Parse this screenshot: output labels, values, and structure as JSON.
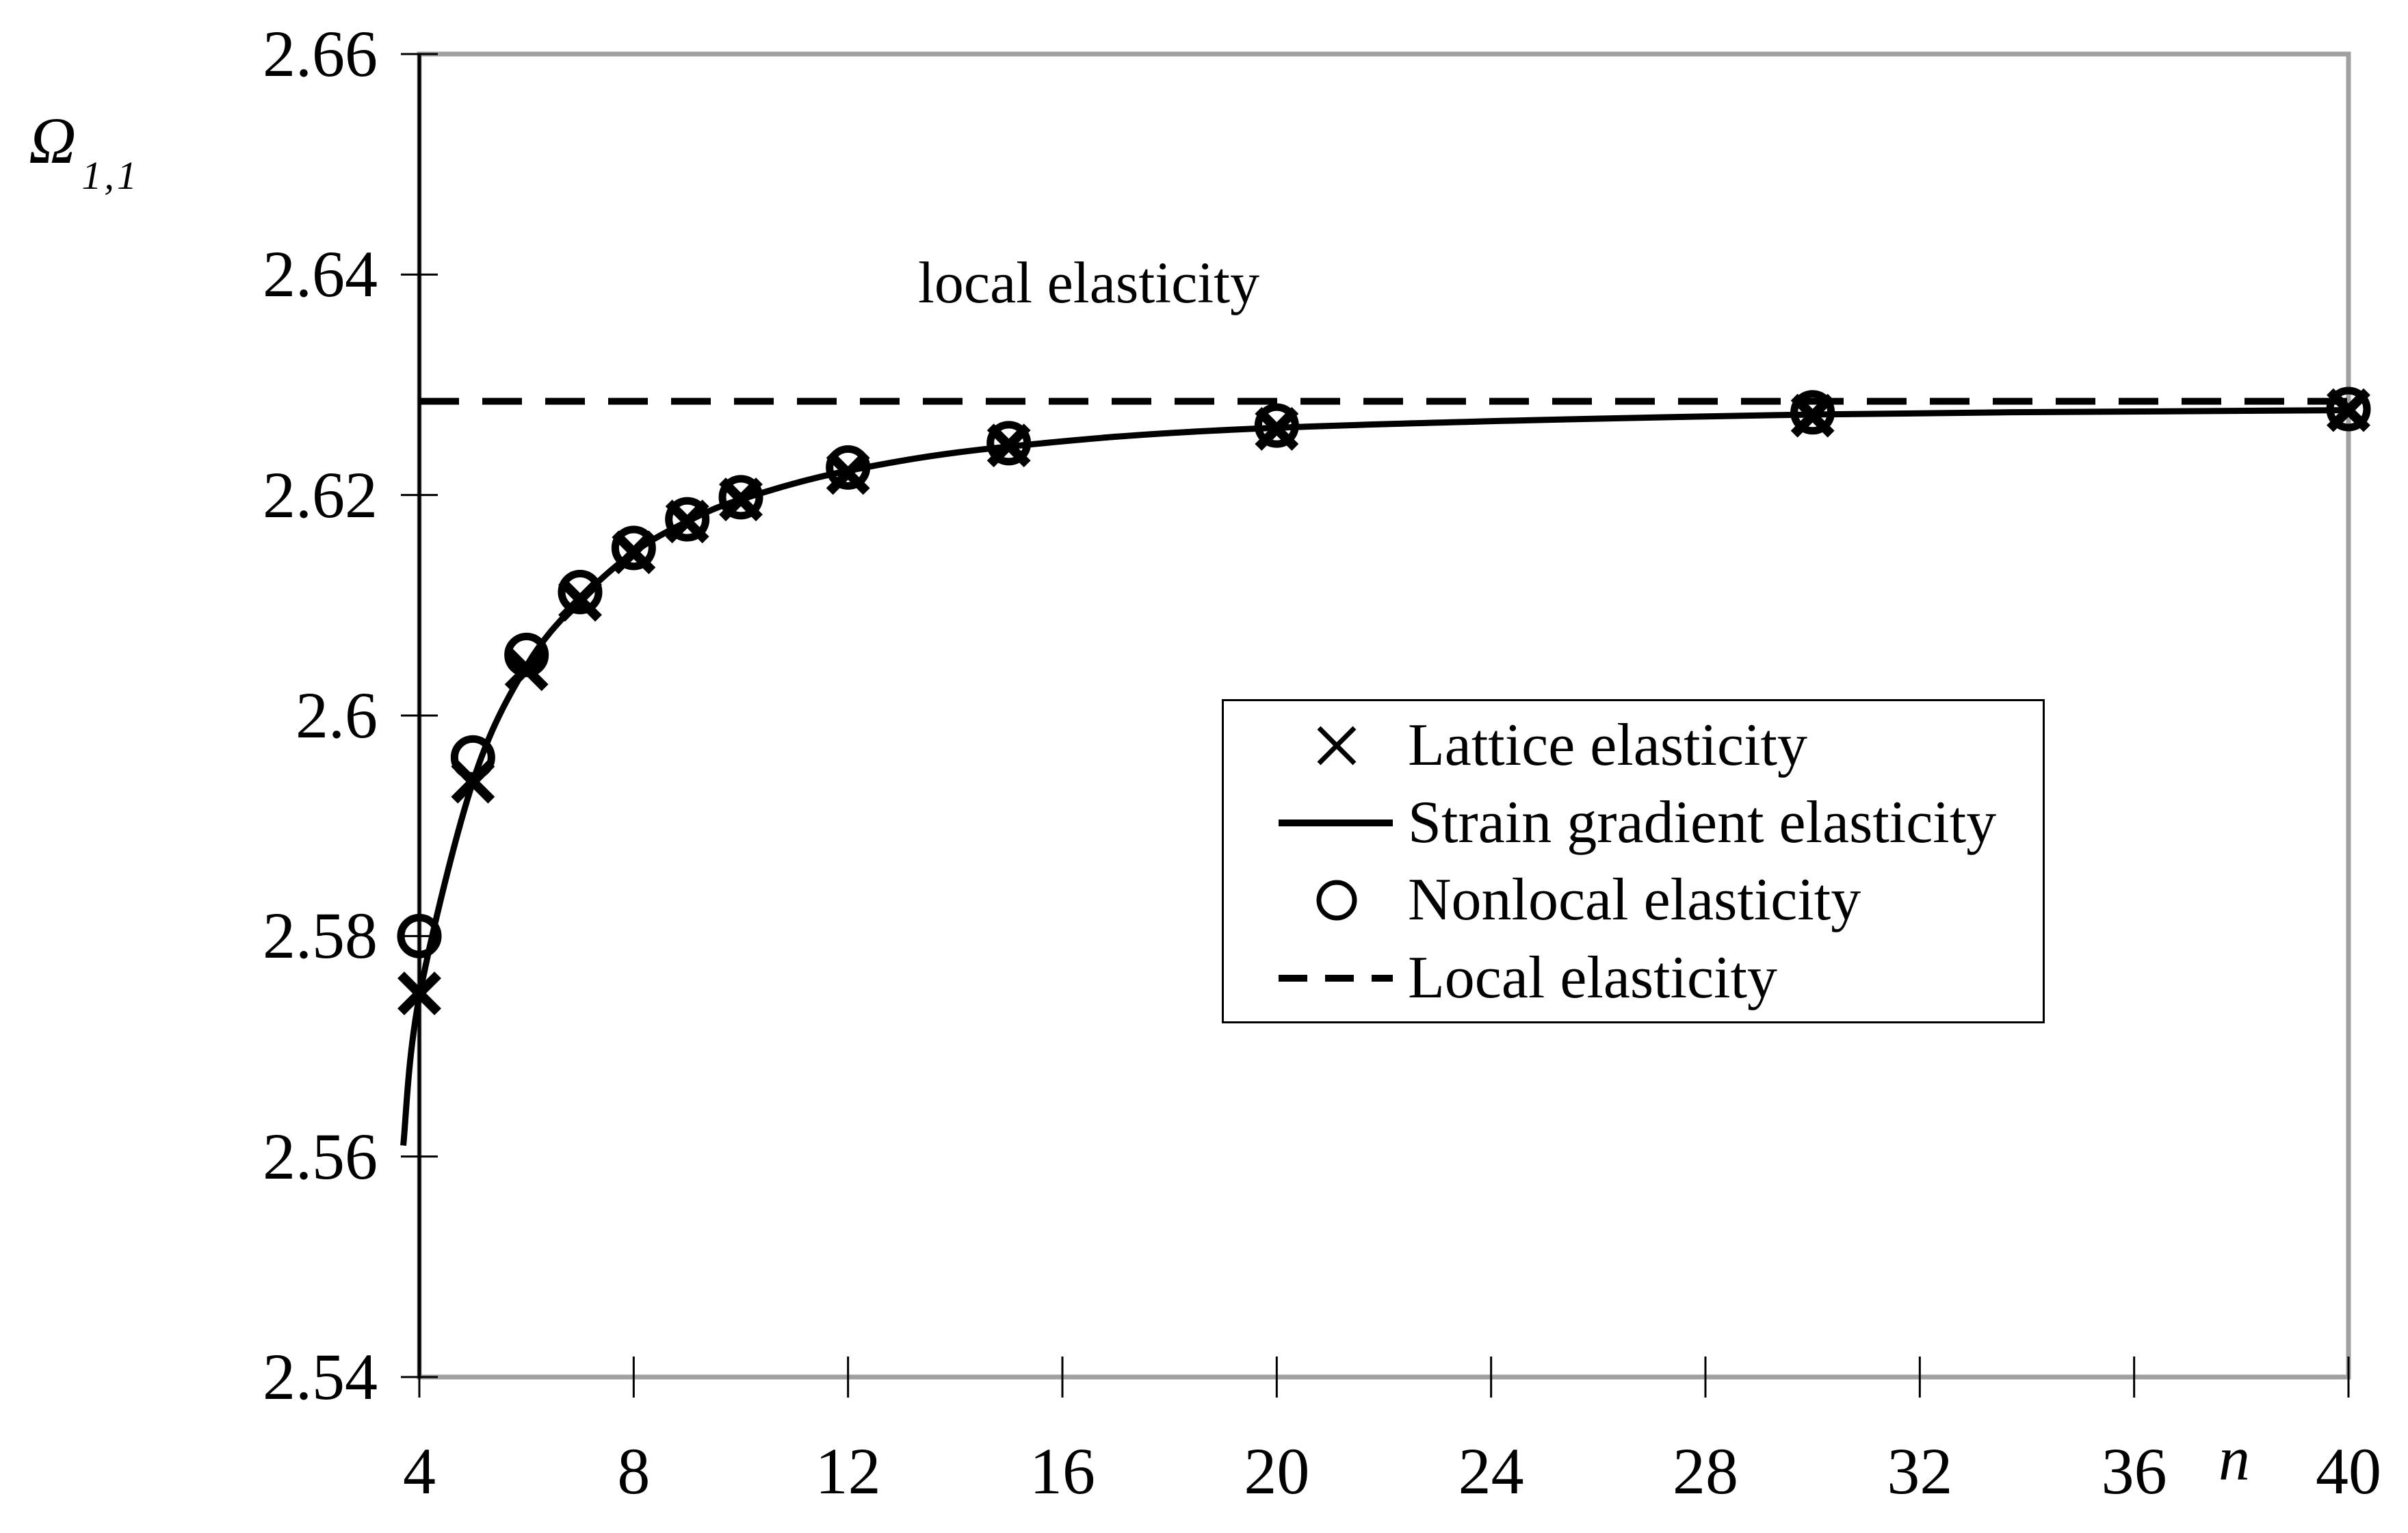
{
  "figure": {
    "annotation": "local elasticity",
    "colors": {
      "curve": "#000000",
      "plot_border": "#a0a0a0",
      "text": "#000000",
      "background": "#ffffff"
    }
  },
  "legend": {
    "items": [
      {
        "marker": "x-cross",
        "label": "Lattice elasticity"
      },
      {
        "marker": "solid-line",
        "label": "Strain gradient elasticity"
      },
      {
        "marker": "circle",
        "label": "Nonlocal elasticity"
      },
      {
        "marker": "dashed-line",
        "label": "Local elasticity"
      }
    ]
  },
  "chart_data": {
    "type": "line",
    "axes": {
      "x": {
        "label": "n",
        "range": [
          4,
          40
        ],
        "ticks": [
          4,
          8,
          12,
          16,
          20,
          24,
          28,
          32,
          36,
          40
        ],
        "tick_labels": [
          "4",
          "8",
          "12",
          "16",
          "20",
          "24",
          "28",
          "32",
          "36",
          "40"
        ]
      },
      "y": {
        "label": "Ω",
        "label_subscript": "1,1",
        "range": [
          2.54,
          2.66
        ],
        "ticks": [
          2.54,
          2.56,
          2.58,
          2.6,
          2.62,
          2.64,
          2.66
        ],
        "tick_labels": [
          "2.54",
          "2.56",
          "2.58",
          "2.6",
          "2.62",
          "2.64",
          "2.66"
        ]
      }
    },
    "series": [
      {
        "name": "Lattice elasticity",
        "style": "x-markers",
        "x": [
          4,
          5,
          6,
          7,
          8,
          9,
          10,
          12,
          15,
          20,
          30,
          40
        ],
        "values": [
          2.5748,
          2.594,
          2.6042,
          2.6105,
          2.6148,
          2.6176,
          2.6196,
          2.622,
          2.6245,
          2.626,
          2.6272,
          2.6277
        ]
      },
      {
        "name": "Strain gradient elasticity",
        "style": "solid-line",
        "points": [
          [
            3.7,
            2.561
          ],
          [
            4,
            2.5745
          ],
          [
            5,
            2.594
          ],
          [
            6,
            2.6045
          ],
          [
            7,
            2.6105
          ],
          [
            8,
            2.6148
          ],
          [
            9,
            2.6176
          ],
          [
            10,
            2.6196
          ],
          [
            12,
            2.6222
          ],
          [
            15,
            2.6244
          ],
          [
            20,
            2.6261
          ],
          [
            30,
            2.6273
          ],
          [
            40,
            2.6277
          ]
        ]
      },
      {
        "name": "Nonlocal elasticity",
        "style": "circle-markers",
        "x": [
          4,
          5,
          6,
          7,
          8,
          9,
          10,
          12,
          15,
          20,
          30,
          40
        ],
        "values": [
          2.58,
          2.5962,
          2.6055,
          2.6112,
          2.6152,
          2.6178,
          2.6198,
          2.6225,
          2.6247,
          2.6263,
          2.6275,
          2.6278
        ]
      },
      {
        "name": "Local elasticity",
        "style": "dashed-horizontal-line",
        "value": 2.6285
      }
    ]
  }
}
